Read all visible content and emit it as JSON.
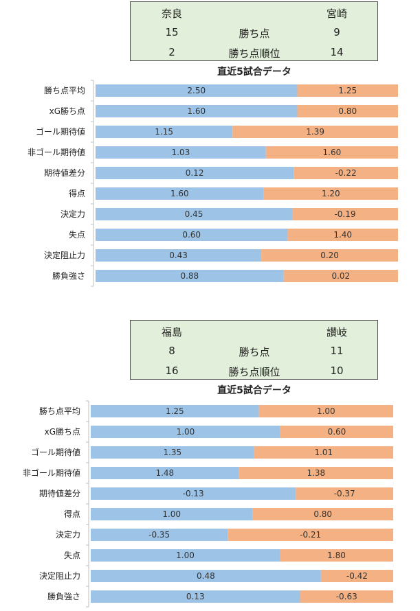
{
  "colors": {
    "home": "#9dc3e6",
    "away": "#f4b183",
    "panel_bg": "#e2efda"
  },
  "matches": [
    {
      "home_team": "奈良",
      "away_team": "宮崎",
      "rows": [
        {
          "label": "勝ち点",
          "home": "15",
          "away": "9"
        },
        {
          "label": "勝ち点順位",
          "home": "2",
          "away": "14"
        }
      ],
      "chart_data": {
        "type": "bar",
        "orientation": "horizontal-stacked-percent",
        "title": "直近5試合データ",
        "categories": [
          "勝ち点平均",
          "xG勝ち点",
          "ゴール期待値",
          "非ゴール期待値",
          "期待値差分",
          "得点",
          "決定力",
          "失点",
          "決定阻止力",
          "勝負強さ"
        ],
        "series": [
          {
            "name": "奈良",
            "values": [
              2.5,
              1.6,
              1.15,
              1.03,
              0.12,
              1.6,
              0.45,
              0.6,
              0.43,
              0.88
            ],
            "labels": [
              "2.50",
              "1.60",
              "1.15",
              "1.03",
              "0.12",
              "1.60",
              "0.45",
              "0.60",
              "0.43",
              "0.88"
            ]
          },
          {
            "name": "宮崎",
            "values": [
              1.25,
              0.8,
              1.39,
              1.6,
              -0.22,
              1.2,
              -0.19,
              1.4,
              0.2,
              0.02
            ],
            "labels": [
              "1.25",
              "0.80",
              "1.39",
              "1.60",
              "-0.22",
              "1.20",
              "-0.19",
              "1.40",
              "0.20",
              "0.02"
            ]
          }
        ],
        "share_home": [
          0.667,
          0.667,
          0.453,
          0.563,
          0.655,
          0.556,
          0.65,
          0.635,
          0.548,
          0.622
        ]
      }
    },
    {
      "home_team": "福島",
      "away_team": "讃岐",
      "rows": [
        {
          "label": "勝ち点",
          "home": "8",
          "away": "11"
        },
        {
          "label": "勝ち点順位",
          "home": "16",
          "away": "10"
        }
      ],
      "chart_data": {
        "type": "bar",
        "orientation": "horizontal-stacked-percent",
        "title": "直近5試合データ",
        "categories": [
          "勝ち点平均",
          "xG勝ち点",
          "ゴール期待値",
          "非ゴール期待値",
          "期待値差分",
          "得点",
          "決定力",
          "失点",
          "決定阻止力",
          "勝負強さ"
        ],
        "series": [
          {
            "name": "福島",
            "values": [
              1.25,
              1.0,
              1.35,
              1.48,
              -0.13,
              1.0,
              -0.35,
              1.0,
              0.48,
              0.13
            ],
            "labels": [
              "1.25",
              "1.00",
              "1.35",
              "1.48",
              "-0.13",
              "1.00",
              "-0.35",
              "1.00",
              "0.48",
              "0.13"
            ]
          },
          {
            "name": "讃岐",
            "values": [
              1.0,
              0.6,
              1.01,
              1.38,
              -0.37,
              0.8,
              -0.21,
              1.8,
              -0.42,
              -0.63
            ],
            "labels": [
              "1.00",
              "0.60",
              "1.01",
              "1.38",
              "-0.37",
              "0.80",
              "-0.21",
              "1.80",
              "-0.42",
              "-0.63"
            ]
          }
        ],
        "share_home": [
          0.556,
          0.627,
          0.54,
          0.49,
          0.678,
          0.535,
          0.453,
          0.625,
          0.761,
          0.692
        ]
      }
    }
  ]
}
